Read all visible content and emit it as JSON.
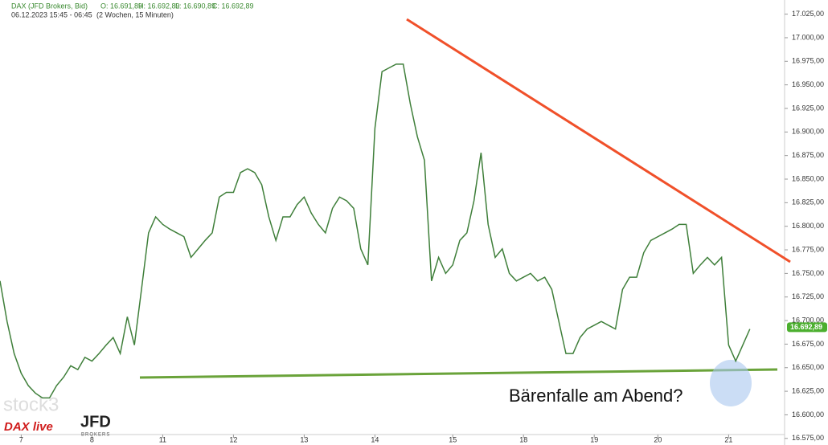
{
  "chart_data": {
    "type": "line",
    "header": {
      "symbol": "DAX (JFD Brokers, Bid)",
      "ohlc": [
        "O: 16.691,89",
        "H: 16.692,89",
        "L: 16.690,89",
        "C: 16.692,89"
      ],
      "range": "06.12.2023 15:45 - 06:45",
      "period": "(2 Wochen, 15 Minuten)"
    },
    "annotation": "Bärenfalle am Abend?",
    "logos": [
      "stock3",
      "DAX live",
      "JFD",
      "BROKERS"
    ],
    "color": "#3f7f3a",
    "categories": [
      null,
      null,
      null,
      "7",
      null,
      null,
      null,
      null,
      null,
      null,
      null,
      null,
      null,
      "8",
      null,
      null,
      null,
      null,
      null,
      null,
      null,
      null,
      null,
      "11",
      null,
      null,
      null,
      null,
      null,
      null,
      null,
      null,
      null,
      "12",
      null,
      null,
      null,
      null,
      null,
      null,
      null,
      null,
      null,
      "13",
      null,
      null,
      null,
      null,
      null,
      null,
      null,
      null,
      null,
      "14",
      null,
      null,
      null,
      null,
      null,
      null,
      null,
      null,
      null,
      null,
      "15",
      null,
      null,
      null,
      null,
      null,
      null,
      null,
      null,
      null,
      "18",
      null,
      null,
      null,
      null,
      null,
      null,
      null,
      null,
      null,
      "19",
      null,
      null,
      null,
      null,
      null,
      null,
      null,
      null,
      "20",
      null,
      null,
      null,
      null,
      null,
      null,
      null,
      null,
      null,
      "21",
      null,
      null,
      null
    ],
    "values": [
      16742,
      16699,
      16665,
      16644,
      16631,
      16623,
      16618,
      16618,
      16631,
      16640,
      16652,
      16648,
      16661,
      16657,
      16665,
      16674,
      16682,
      16665,
      16704,
      16674,
      16733,
      16793,
      16810,
      16802,
      16797,
      16793,
      16789,
      16767,
      16776,
      16785,
      16793,
      16831,
      16836,
      16836,
      16857,
      16861,
      16857,
      16844,
      16810,
      16785,
      16810,
      16810,
      16823,
      16831,
      16814,
      16802,
      16793,
      16819,
      16831,
      16827,
      16819,
      16776,
      16759,
      16904,
      16964,
      16968,
      16972,
      16972,
      16930,
      16895,
      16870,
      16742,
      16767,
      16750,
      16759,
      16785,
      16793,
      16827,
      16878,
      16802,
      16767,
      16776,
      16750,
      16742,
      16746,
      16750,
      16742,
      16746,
      16733,
      16699,
      16665,
      16665,
      16682,
      16691,
      16695,
      16699,
      16695,
      16691,
      16733,
      16746,
      16746,
      16772,
      16785,
      16789,
      16793,
      16797,
      16802,
      16802,
      16750,
      16759,
      16767,
      16759,
      16767,
      16674,
      16657,
      16674,
      16691
    ],
    "last_price": {
      "value": 16692.89,
      "label": "16.692,89"
    },
    "ylim": [
      16568,
      17040
    ],
    "yticks": [
      {
        "value": 16575,
        "label": "16.575,00"
      },
      {
        "value": 16600,
        "label": "16.600,00"
      },
      {
        "value": 16625,
        "label": "16.625,00"
      },
      {
        "value": 16650,
        "label": "16.650,00"
      },
      {
        "value": 16675,
        "label": "16.675,00"
      },
      {
        "value": 16700,
        "label": "16.700,00"
      },
      {
        "value": 16725,
        "label": "16.725,00"
      },
      {
        "value": 16750,
        "label": "16.750,00"
      },
      {
        "value": 16775,
        "label": "16.775,00"
      },
      {
        "value": 16800,
        "label": "16.800,00"
      },
      {
        "value": 16825,
        "label": "16.825,00"
      },
      {
        "value": 16850,
        "label": "16.850,00"
      },
      {
        "value": 16875,
        "label": "16.875,00"
      },
      {
        "value": 16900,
        "label": "16.900,00"
      },
      {
        "value": 16925,
        "label": "16.925,00"
      },
      {
        "value": 16950,
        "label": "16.950,00"
      },
      {
        "value": 16975,
        "label": "16.975,00"
      },
      {
        "value": 17000,
        "label": "17.000,00"
      },
      {
        "value": 17025,
        "label": "17.025,00"
      }
    ],
    "grid": false
  }
}
